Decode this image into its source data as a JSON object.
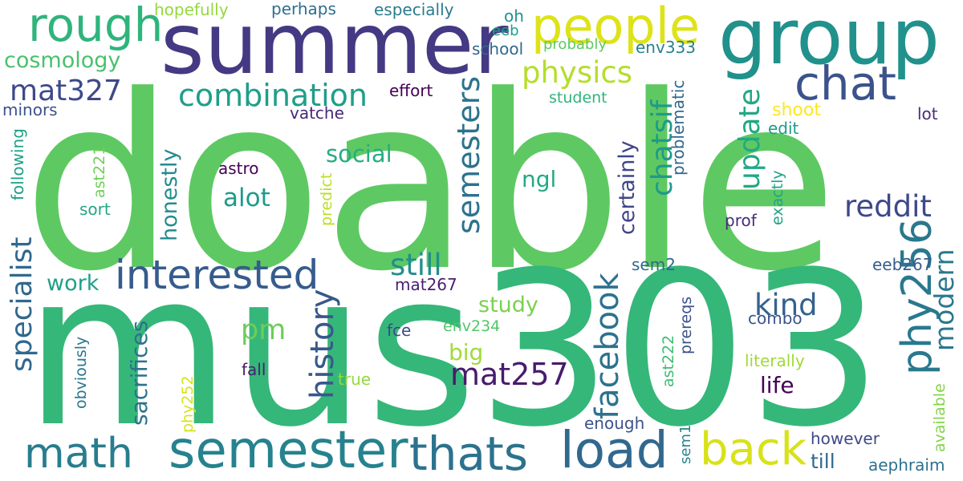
{
  "words": [
    {
      "text": "doable",
      "color": "#5ec962"
    },
    {
      "text": "mus303",
      "color": "#35b779"
    },
    {
      "text": "summer",
      "color": "#443983"
    },
    {
      "text": "group",
      "color": "#21918c"
    },
    {
      "text": "people",
      "color": "#dde318"
    },
    {
      "text": "rough",
      "color": "#2fb47c"
    },
    {
      "text": "chat",
      "color": "#3b528b"
    },
    {
      "text": "semester",
      "color": "#26828e"
    },
    {
      "text": "thats",
      "color": "#2c728e"
    },
    {
      "text": "load",
      "color": "#31688e"
    },
    {
      "text": "back",
      "color": "#d8e219"
    },
    {
      "text": "math",
      "color": "#287d8e"
    },
    {
      "text": "interested",
      "color": "#365c8d"
    },
    {
      "text": "mat257",
      "color": "#481b6d"
    },
    {
      "text": "phy256",
      "color": "#2a788e"
    },
    {
      "text": "combination",
      "color": "#1f9e89"
    },
    {
      "text": "physics",
      "color": "#b5de2b"
    },
    {
      "text": "mat327",
      "color": "#3e4989"
    },
    {
      "text": "cosmology",
      "color": "#4ac16d"
    },
    {
      "text": "semesters",
      "color": "#2c728e"
    },
    {
      "text": "update",
      "color": "#22a884"
    },
    {
      "text": "chatsif",
      "color": "#1f9a8a"
    },
    {
      "text": "reddit",
      "color": "#3e4989"
    },
    {
      "text": "kind",
      "color": "#33638d"
    },
    {
      "text": "modern",
      "color": "#2a788e"
    },
    {
      "text": "facebook",
      "color": "#2c728e"
    },
    {
      "text": "still",
      "color": "#218f8d"
    },
    {
      "text": "history",
      "color": "#38588c"
    },
    {
      "text": "specialist",
      "color": "#31688e"
    },
    {
      "text": "pm",
      "color": "#6ccd5a"
    },
    {
      "text": "alot",
      "color": "#1e9b8a"
    },
    {
      "text": "social",
      "color": "#27ad81"
    },
    {
      "text": "ngl",
      "color": "#23a983"
    },
    {
      "text": "certainly",
      "color": "#414487"
    },
    {
      "text": "honestly",
      "color": "#228c8d"
    },
    {
      "text": "work",
      "color": "#1fa088"
    },
    {
      "text": "study",
      "color": "#7ad151"
    },
    {
      "text": "big",
      "color": "#a0da39"
    },
    {
      "text": "sacrifices",
      "color": "#2c728e"
    },
    {
      "text": "life",
      "color": "#440154"
    },
    {
      "text": "till",
      "color": "#306a8e"
    },
    {
      "text": "enough",
      "color": "#3b528b"
    },
    {
      "text": "however",
      "color": "#3e4a89"
    },
    {
      "text": "aephraim",
      "color": "#2c728e"
    },
    {
      "text": "hopefully",
      "color": "#95d840"
    },
    {
      "text": "perhaps",
      "color": "#2e6e8e"
    },
    {
      "text": "especially",
      "color": "#287c8e"
    },
    {
      "text": "oh",
      "color": "#1f948c"
    },
    {
      "text": "eeb",
      "color": "#1f9f88"
    },
    {
      "text": "school",
      "color": "#31678e"
    },
    {
      "text": "probably",
      "color": "#5ec962"
    },
    {
      "text": "env333",
      "color": "#26818e"
    },
    {
      "text": "minors",
      "color": "#3b528b"
    },
    {
      "text": "effort",
      "color": "#440154"
    },
    {
      "text": "vatche",
      "color": "#482878"
    },
    {
      "text": "student",
      "color": "#2eb37c"
    },
    {
      "text": "shoot",
      "color": "#fde725"
    },
    {
      "text": "lot",
      "color": "#472d7b"
    },
    {
      "text": "edit",
      "color": "#1e9c89"
    },
    {
      "text": "problematic",
      "color": "#31688e"
    },
    {
      "text": "following",
      "color": "#1fa188"
    },
    {
      "text": "ast221",
      "color": "#6ece58"
    },
    {
      "text": "sort",
      "color": "#22a785"
    },
    {
      "text": "astro",
      "color": "#440154"
    },
    {
      "text": "predict",
      "color": "#bddf26"
    },
    {
      "text": "prof",
      "color": "#472c7a"
    },
    {
      "text": "exactly",
      "color": "#20a386"
    },
    {
      "text": "sem2",
      "color": "#31688e"
    },
    {
      "text": "eeb267",
      "color": "#365d8d"
    },
    {
      "text": "mat267",
      "color": "#481f70"
    },
    {
      "text": "prereqs",
      "color": "#3b528b"
    },
    {
      "text": "ast222",
      "color": "#3dbc74"
    },
    {
      "text": "combo",
      "color": "#3a548c"
    },
    {
      "text": "literally",
      "color": "#a0da39"
    },
    {
      "text": "fce",
      "color": "#3e4989"
    },
    {
      "text": "env234",
      "color": "#52c569"
    },
    {
      "text": "fall",
      "color": "#482071"
    },
    {
      "text": "true",
      "color": "#95d840"
    },
    {
      "text": "obviously",
      "color": "#2a788e"
    },
    {
      "text": "phy252",
      "color": "#d8e219"
    },
    {
      "text": "sem1",
      "color": "#25848e"
    },
    {
      "text": "available",
      "color": "#84d44b"
    }
  ]
}
